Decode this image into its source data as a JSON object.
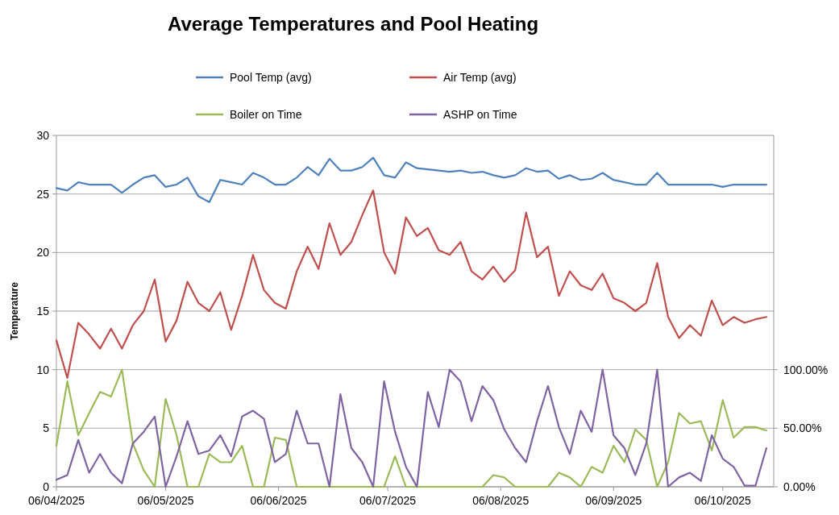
{
  "chart_data": {
    "type": "line",
    "title": "Average Temperatures and Pool Heating",
    "ylabel": "Temperature",
    "x": [
      "2025-04-06",
      "2025-04-09",
      "2025-04-12",
      "2025-04-15",
      "2025-04-18",
      "2025-04-21",
      "2025-04-24",
      "2025-04-27",
      "2025-04-30",
      "2025-05-03",
      "2025-05-06",
      "2025-05-09",
      "2025-05-12",
      "2025-05-15",
      "2025-05-18",
      "2025-05-21",
      "2025-05-24",
      "2025-05-27",
      "2025-05-30",
      "2025-06-02",
      "2025-06-05",
      "2025-06-08",
      "2025-06-11",
      "2025-06-14",
      "2025-06-17",
      "2025-06-20",
      "2025-06-23",
      "2025-06-26",
      "2025-06-29",
      "2025-07-02",
      "2025-07-05",
      "2025-07-08",
      "2025-07-11",
      "2025-07-14",
      "2025-07-17",
      "2025-07-20",
      "2025-07-23",
      "2025-07-26",
      "2025-07-29",
      "2025-08-01",
      "2025-08-04",
      "2025-08-07",
      "2025-08-10",
      "2025-08-13",
      "2025-08-16",
      "2025-08-19",
      "2025-08-22",
      "2025-08-25",
      "2025-08-28",
      "2025-08-31",
      "2025-09-03",
      "2025-09-06",
      "2025-09-09",
      "2025-09-12",
      "2025-09-15",
      "2025-09-18",
      "2025-09-21",
      "2025-09-24",
      "2025-09-27",
      "2025-09-30",
      "2025-10-03",
      "2025-10-06",
      "2025-10-09",
      "2025-10-12",
      "2025-10-15",
      "2025-10-18"
    ],
    "series": [
      {
        "name": "Pool Temp (avg)",
        "color": "#4f81bd",
        "values": [
          25.5,
          25.3,
          26.0,
          25.8,
          25.8,
          25.8,
          25.1,
          25.8,
          26.4,
          26.6,
          25.6,
          25.8,
          26.4,
          24.8,
          24.3,
          26.2,
          26.0,
          25.8,
          26.8,
          26.4,
          25.8,
          25.8,
          26.4,
          27.3,
          26.6,
          28.0,
          27.0,
          27.0,
          27.3,
          28.1,
          26.6,
          26.4,
          27.7,
          27.2,
          27.1,
          27.0,
          26.9,
          27.0,
          26.8,
          26.9,
          26.6,
          26.4,
          26.6,
          27.2,
          26.9,
          27.0,
          26.3,
          26.6,
          26.2,
          26.3,
          26.8,
          26.2,
          26.0,
          25.8,
          25.8,
          26.8,
          25.8,
          25.8,
          25.8,
          25.8,
          25.8,
          25.6,
          25.8,
          25.8,
          25.8,
          25.8
        ]
      },
      {
        "name": "Air Temp (avg)",
        "color": "#c0504d",
        "values": [
          12.5,
          9.3,
          14.0,
          13.0,
          11.8,
          13.5,
          11.8,
          13.8,
          15.0,
          17.7,
          12.4,
          14.2,
          17.5,
          15.7,
          15.0,
          16.6,
          13.4,
          16.3,
          19.8,
          16.8,
          15.7,
          15.2,
          18.4,
          20.5,
          18.6,
          22.5,
          19.8,
          20.9,
          23.2,
          25.3,
          20.0,
          18.2,
          23.0,
          21.4,
          22.1,
          20.2,
          19.8,
          20.9,
          18.4,
          17.7,
          18.8,
          17.5,
          18.5,
          23.4,
          19.6,
          20.5,
          16.3,
          18.4,
          17.2,
          16.8,
          18.2,
          16.1,
          15.7,
          15.0,
          15.7,
          19.1,
          14.5,
          12.7,
          13.8,
          12.9,
          15.9,
          13.8,
          14.5,
          14.0,
          14.3,
          14.5
        ]
      },
      {
        "name": "Boiler on Time",
        "color": "#9bbb59",
        "axis": "y2",
        "values": [
          35,
          90,
          44,
          63,
          81,
          77,
          100,
          37,
          14,
          0,
          75,
          44,
          0,
          0,
          28,
          21,
          21,
          35,
          0,
          0,
          42,
          40,
          0,
          0,
          0,
          0,
          0,
          0,
          0,
          0,
          0,
          26,
          0,
          0,
          0,
          0,
          0,
          0,
          0,
          0,
          10,
          8,
          0,
          0,
          0,
          0,
          12,
          8,
          0,
          17,
          12,
          35,
          21,
          49,
          40,
          0,
          21,
          63,
          54,
          56,
          31,
          74,
          42,
          51,
          51,
          48
        ]
      },
      {
        "name": "ASHP on Time",
        "color": "#8064a2",
        "axis": "y2",
        "values": [
          6,
          10,
          40,
          12,
          28,
          12,
          3,
          37,
          47,
          60,
          0,
          26,
          56,
          28,
          31,
          44,
          26,
          60,
          65,
          58,
          21,
          28,
          65,
          37,
          37,
          0,
          79,
          33,
          21,
          0,
          90,
          47,
          17,
          0,
          81,
          51,
          100,
          90,
          56,
          86,
          74,
          49,
          33,
          21,
          56,
          86,
          51,
          28,
          65,
          47,
          100,
          44,
          33,
          10,
          37,
          100,
          0,
          8,
          12,
          5,
          44,
          24,
          17,
          1,
          1,
          33
        ]
      }
    ],
    "xlim": [
      "2025-04-06",
      "2025-10-20"
    ],
    "xticks": [
      {
        "value": "2025-04-06",
        "label": "06/04/2025"
      },
      {
        "value": "2025-05-06",
        "label": "06/05/2025"
      },
      {
        "value": "2025-06-06",
        "label": "06/06/2025"
      },
      {
        "value": "2025-07-06",
        "label": "06/07/2025"
      },
      {
        "value": "2025-08-06",
        "label": "06/08/2025"
      },
      {
        "value": "2025-09-06",
        "label": "06/09/2025"
      },
      {
        "value": "2025-10-06",
        "label": "06/10/2025"
      }
    ],
    "ylim": [
      0,
      30
    ],
    "yticks": [
      0,
      5,
      10,
      15,
      20,
      25,
      30
    ],
    "y2lim": [
      0,
      300
    ],
    "y2ticks": [
      {
        "value": 0,
        "label": "0.00%"
      },
      {
        "value": 50,
        "label": "50.00%"
      },
      {
        "value": 100,
        "label": "100.00%"
      }
    ],
    "grid": "y",
    "legend": "top",
    "line_style": "solid",
    "marker": "none"
  }
}
